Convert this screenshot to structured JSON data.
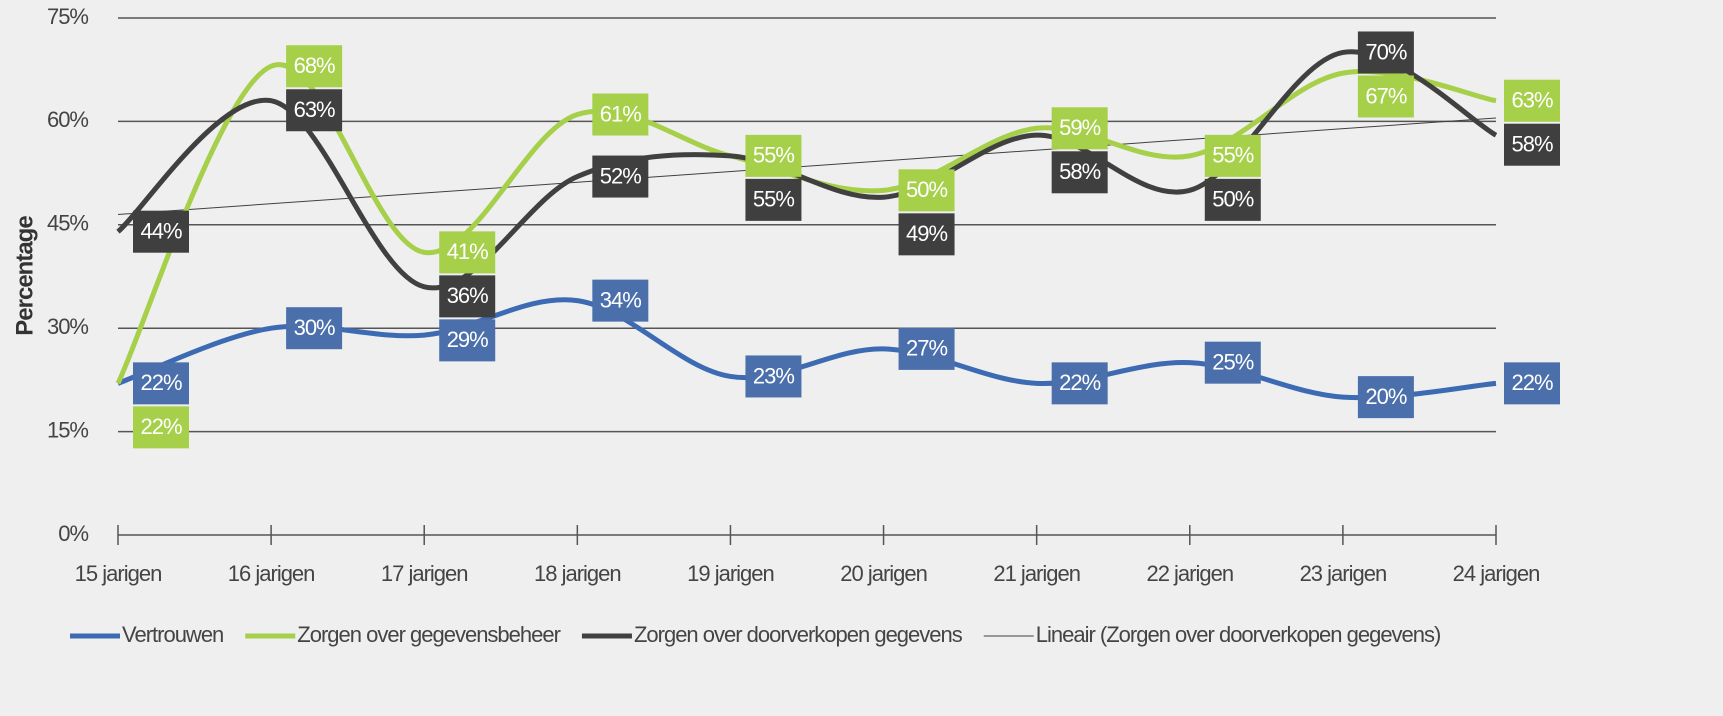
{
  "chart_data": {
    "type": "line",
    "categories": [
      "15 jarigen",
      "16 jarigen",
      "17 jarigen",
      "18 jarigen",
      "19 jarigen",
      "20 jarigen",
      "21 jarigen",
      "22 jarigen",
      "23 jarigen",
      "24 jarigen"
    ],
    "y_label": "Percentage",
    "ylim": [
      0,
      75
    ],
    "yticks": [
      {
        "value": 0,
        "label": "0%"
      },
      {
        "value": 15,
        "label": "15%"
      },
      {
        "value": 30,
        "label": "30%"
      },
      {
        "value": 45,
        "label": "45%"
      },
      {
        "value": 60,
        "label": "60%"
      },
      {
        "value": 75,
        "label": "75%"
      }
    ],
    "grid": true,
    "series": [
      {
        "name": "Vertrouwen",
        "color": "#3d6bb3",
        "label_color": "#4a6fab",
        "values": [
          22,
          30,
          29,
          34,
          23,
          27,
          22,
          25,
          20,
          22
        ],
        "value_labels": [
          "22%",
          "30%",
          "29%",
          "34%",
          "23%",
          "27%",
          "22%",
          "25%",
          "20%",
          "22%"
        ]
      },
      {
        "name": "Zorgen over gegevensbeheer",
        "color": "#a6cf4a",
        "label_color": "#a6cf4a",
        "values": [
          22,
          68,
          41,
          61,
          55,
          50,
          59,
          55,
          67,
          63
        ],
        "value_labels": [
          "22%",
          "68%",
          "41%",
          "61%",
          "55%",
          "50%",
          "59%",
          "55%",
          "67%",
          "63%"
        ]
      },
      {
        "name": "Zorgen over doorverkopen gegevens",
        "color": "#404040",
        "label_color": "#3f3f3f",
        "values": [
          44,
          63,
          36,
          52,
          55,
          49,
          58,
          50,
          70,
          58
        ],
        "value_labels": [
          "44%",
          "63%",
          "36%",
          "52%",
          "55%",
          "49%",
          "58%",
          "50%",
          "70%",
          "58%"
        ]
      }
    ],
    "trendline": {
      "name": "Lineair (Zorgen over doorverkopen gegevens)",
      "color": "#404040",
      "values": [
        46.5,
        60.5
      ]
    }
  }
}
